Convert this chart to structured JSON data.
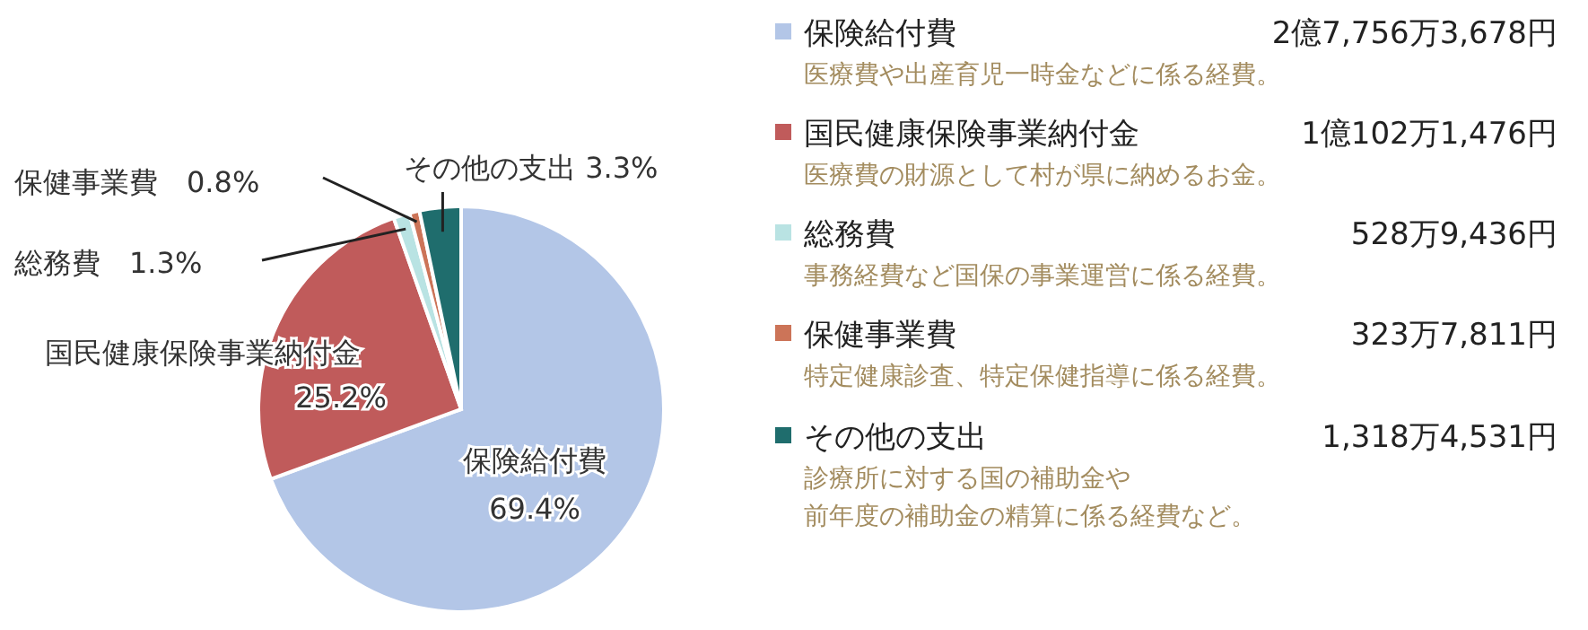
{
  "chart_data": {
    "type": "pie",
    "categories": [
      "保険給付費",
      "国民健康保険事業納付金",
      "総務費",
      "保健事業費",
      "その他の支出"
    ],
    "values": [
      69.4,
      25.2,
      1.3,
      0.8,
      3.3
    ],
    "value_labels": [
      "69.4%",
      "25.2%",
      "1.3%",
      "0.8%",
      "3.3%"
    ],
    "colors": [
      "#b3c6e7",
      "#c05b5b",
      "#b9e3e3",
      "#cc7458",
      "#1f6d6d"
    ],
    "legend": "right",
    "annotations": [
      "2億7,756万3,678円",
      "1億102万1,476円",
      "528万9,436円",
      "323万7,811円",
      "1,318万4,531円",
      "医療費や出産育児一時金などに係る経費。",
      "医療費の財源として村が県に納めるお金。",
      "事務経費など国保の事業運営に係る経費。",
      "特定健康診査、特定保健指導に係る経費。",
      "診療所に対する国の補助金や",
      "前年度の補助金の精算に係る経費など。"
    ]
  }
}
